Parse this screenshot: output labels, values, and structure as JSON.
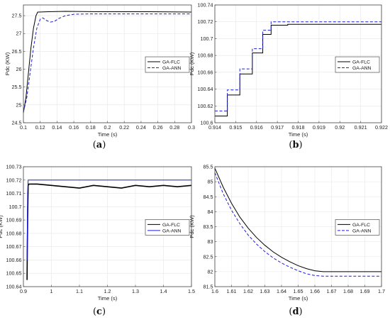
{
  "colors": {
    "flc": "#000000",
    "ann": "#1f1fd6",
    "grid": "#e6e6e6",
    "frame": "#444444"
  },
  "chart_data": [
    {
      "id": "a",
      "caption_letter": "a",
      "type": "line",
      "xlabel": "Time (s)",
      "ylabel": "Pdc (KW)",
      "xlim": [
        0.1,
        0.3
      ],
      "ylim": [
        24.5,
        27.8
      ],
      "xticks": [
        0.1,
        0.12,
        0.14,
        0.16,
        0.18,
        0.2,
        0.22,
        0.24,
        0.26,
        0.28,
        0.3
      ],
      "xticklabels": [
        "0.1",
        "0.12",
        "0.14",
        "0.16",
        "0.18",
        "0.2",
        "0.22",
        "0.24",
        "0.26",
        "0.28",
        "0.3"
      ],
      "yticks": [
        24.5,
        25,
        25.5,
        26,
        26.5,
        27,
        27.5
      ],
      "yticklabels": [
        "24.5",
        "25",
        "25.5",
        "26",
        "26.5",
        "27",
        "27.5"
      ],
      "grid": true,
      "legend_position": "middle-right",
      "series": [
        {
          "name": "GA-FLC",
          "style": "solid",
          "x": [
            0.1,
            0.103,
            0.106,
            0.109,
            0.112,
            0.115,
            0.117,
            0.118,
            0.13,
            0.15,
            0.2,
            0.25,
            0.3
          ],
          "y": [
            24.78,
            25.2,
            25.9,
            26.6,
            27.15,
            27.5,
            27.6,
            27.6,
            27.61,
            27.62,
            27.61,
            27.61,
            27.6
          ]
        },
        {
          "name": "GA-ANN",
          "style": "dashed",
          "x": [
            0.1,
            0.104,
            0.108,
            0.112,
            0.116,
            0.12,
            0.123,
            0.127,
            0.132,
            0.137,
            0.142,
            0.15,
            0.16,
            0.18,
            0.2,
            0.25,
            0.3
          ],
          "y": [
            24.8,
            25.2,
            25.9,
            26.6,
            27.15,
            27.4,
            27.44,
            27.37,
            27.32,
            27.34,
            27.42,
            27.5,
            27.54,
            27.55,
            27.55,
            27.55,
            27.55
          ]
        }
      ]
    },
    {
      "id": "b",
      "caption_letter": "b",
      "type": "line",
      "xlabel": "Time (s)",
      "ylabel": "Pdc (KW)",
      "xlim": [
        0.914,
        0.922
      ],
      "ylim": [
        100.6,
        100.74
      ],
      "xticks": [
        0.914,
        0.915,
        0.916,
        0.917,
        0.918,
        0.919,
        0.92,
        0.921,
        0.922
      ],
      "xticklabels": [
        "0.914",
        "0.915",
        "0.916",
        "0.917",
        "0.918",
        "0.919",
        "0.92",
        "0.921",
        "0.922"
      ],
      "yticks": [
        100.6,
        100.62,
        100.64,
        100.66,
        100.68,
        100.7,
        100.72,
        100.74
      ],
      "yticklabels": [
        "100.6",
        "100.62",
        "100.64",
        "100.66",
        "100.68",
        "100.7",
        "100.72",
        "100.74"
      ],
      "grid": true,
      "legend_position": "middle-right",
      "series": [
        {
          "name": "GA-FLC",
          "style": "solid",
          "step": true,
          "x": [
            0.914,
            0.9146,
            0.9152,
            0.9158,
            0.9163,
            0.9167,
            0.9175,
            0.919,
            0.922
          ],
          "y": [
            100.608,
            100.633,
            100.658,
            100.683,
            100.705,
            100.716,
            100.717,
            100.717,
            100.717
          ]
        },
        {
          "name": "GA-ANN",
          "style": "dashed",
          "step": true,
          "x": [
            0.914,
            0.9146,
            0.9152,
            0.9158,
            0.9163,
            0.9167,
            0.9175,
            0.919,
            0.922
          ],
          "y": [
            100.614,
            100.639,
            100.664,
            100.688,
            100.71,
            100.72,
            100.72,
            100.72,
            100.72
          ]
        }
      ]
    },
    {
      "id": "c",
      "caption_letter": "c",
      "type": "line",
      "xlabel": "Time (s)",
      "ylabel": "Pdc (KW)",
      "xlim": [
        0.9,
        1.5
      ],
      "ylim": [
        100.64,
        100.73
      ],
      "xticks": [
        0.9,
        1,
        1.1,
        1.2,
        1.3,
        1.4,
        1.5
      ],
      "xticklabels": [
        "0.9",
        "1",
        "1.1",
        "1.2",
        "1.3",
        "1.4",
        "1.5"
      ],
      "yticks": [
        100.64,
        100.65,
        100.66,
        100.67,
        100.68,
        100.69,
        100.7,
        100.71,
        100.72,
        100.73
      ],
      "yticklabels": [
        "100.64",
        "100.65",
        "100.66",
        "100.67",
        "100.68",
        "100.69",
        "100.7",
        "100.71",
        "100.72",
        "100.73"
      ],
      "grid": true,
      "legend_position": "middle-right",
      "series": [
        {
          "name": "GA-FLC",
          "style": "solid",
          "x": [
            0.913,
            0.915,
            0.917,
            0.92,
            0.95,
            1.0,
            1.05,
            1.1,
            1.15,
            1.2,
            1.25,
            1.3,
            1.35,
            1.4,
            1.45,
            1.5
          ],
          "y": [
            100.645,
            100.69,
            100.716,
            100.717,
            100.717,
            100.716,
            100.715,
            100.714,
            100.716,
            100.715,
            100.714,
            100.716,
            100.715,
            100.716,
            100.715,
            100.716
          ]
        },
        {
          "name": "GA-ANN",
          "style": "solid",
          "x": [
            0.913,
            0.915,
            0.917,
            0.92,
            1.0,
            1.2,
            1.5
          ],
          "y": [
            100.66,
            100.71,
            100.72,
            100.72,
            100.72,
            100.72,
            100.72
          ]
        }
      ]
    },
    {
      "id": "d",
      "caption_letter": "d",
      "type": "line",
      "xlabel": "Time (s)",
      "ylabel": "Pdc (KW)",
      "xlim": [
        1.6,
        1.7
      ],
      "ylim": [
        81.5,
        85.5
      ],
      "xticks": [
        1.6,
        1.61,
        1.62,
        1.63,
        1.64,
        1.65,
        1.66,
        1.67,
        1.68,
        1.69,
        1.7
      ],
      "xticklabels": [
        "1.6",
        "1.61",
        "1.62",
        "1.63",
        "1.64",
        "1.65",
        "1.66",
        "1.67",
        "1.68",
        "1.69",
        "1.7"
      ],
      "yticks": [
        81.5,
        82,
        82.5,
        83,
        83.5,
        84,
        84.5,
        85,
        85.5
      ],
      "yticklabels": [
        "81.5",
        "82",
        "82.5",
        "83",
        "83.5",
        "84",
        "84.5",
        "85",
        "85.5"
      ],
      "grid": true,
      "legend_position": "middle-right",
      "series": [
        {
          "name": "GA-FLC",
          "style": "solid",
          "x": [
            1.6,
            1.605,
            1.61,
            1.615,
            1.62,
            1.625,
            1.63,
            1.635,
            1.64,
            1.645,
            1.65,
            1.655,
            1.66,
            1.665,
            1.67,
            1.7
          ],
          "y": [
            85.45,
            84.82,
            84.28,
            83.82,
            83.45,
            83.14,
            82.88,
            82.66,
            82.48,
            82.33,
            82.2,
            82.1,
            82.03,
            82.0,
            82.0,
            82.0
          ]
        },
        {
          "name": "GA-ANN",
          "style": "dashed",
          "x": [
            1.6,
            1.605,
            1.61,
            1.615,
            1.62,
            1.625,
            1.63,
            1.635,
            1.64,
            1.645,
            1.65,
            1.655,
            1.66,
            1.665,
            1.67,
            1.7
          ],
          "y": [
            85.3,
            84.6,
            84.05,
            83.6,
            83.22,
            82.92,
            82.67,
            82.46,
            82.29,
            82.15,
            82.03,
            81.93,
            81.87,
            81.85,
            81.85,
            81.85
          ]
        }
      ]
    }
  ]
}
